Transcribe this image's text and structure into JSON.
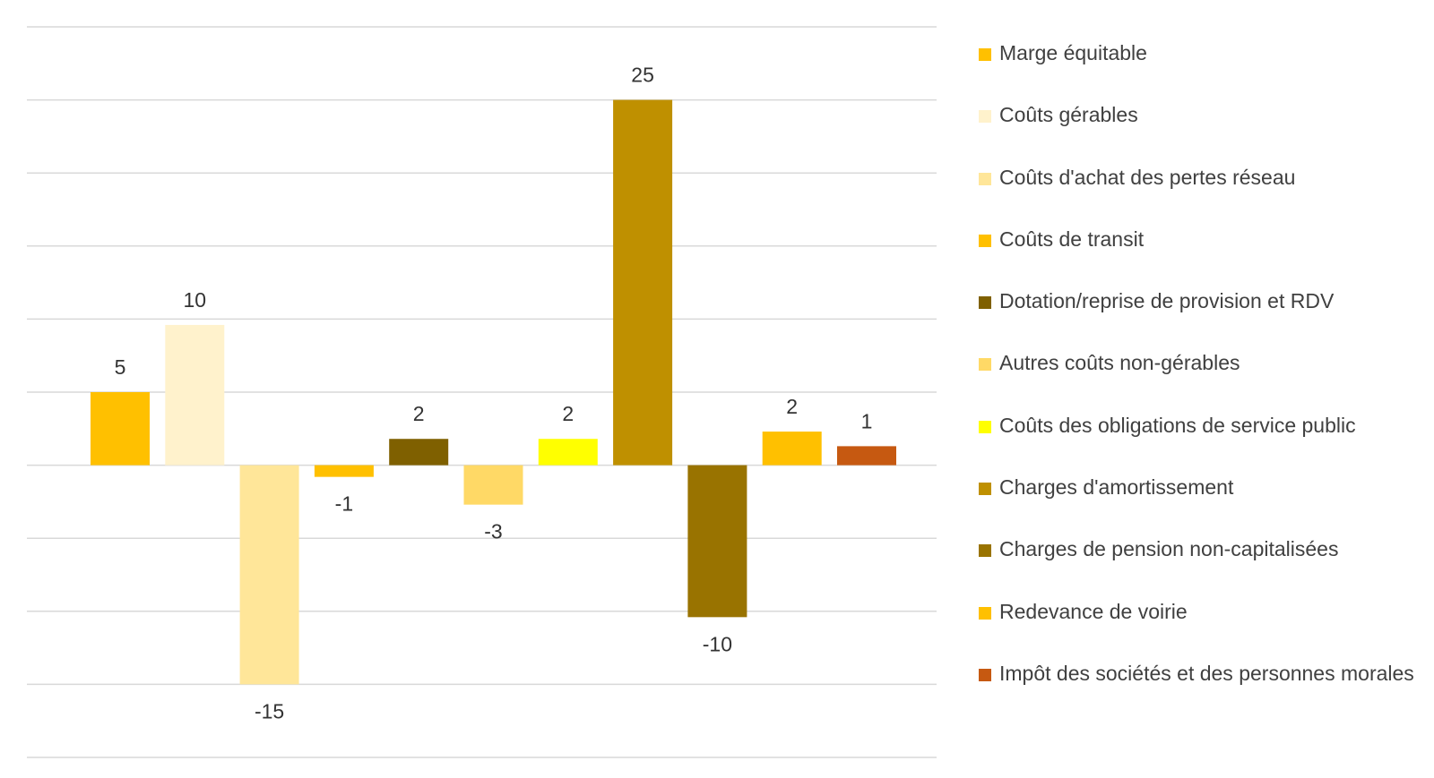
{
  "chart_data": {
    "type": "bar",
    "categories": [
      "Marge équitable",
      "Coûts gérables",
      "Coûts d'achat des pertes réseau",
      "Coûts de transit",
      "Dotation/reprise de provision et RDV",
      "Autres coûts non-gérables",
      "Coûts des obligations de service public",
      "Charges d'amortissement",
      "Charges de pension non-capitalisées",
      "Redevance de voirie",
      "Impôt des sociétés et des personnes morales"
    ],
    "values": [
      5,
      10,
      -15,
      -1,
      2,
      -3,
      2,
      25,
      -10,
      2,
      1
    ],
    "data_labels": [
      "5",
      "10",
      "-15",
      "-1",
      "2",
      "-3",
      "2",
      "25",
      "-10",
      "2",
      "1"
    ],
    "bar_heights_in_units": [
      5,
      9.6,
      -15,
      -0.8,
      1.8,
      -2.7,
      1.8,
      25,
      -10.4,
      2.3,
      1.3
    ],
    "colors": [
      "#FFC000",
      "#FFF2CC",
      "#FFE699",
      "#FFC000",
      "#7F6000",
      "#FFD966",
      "#FFFF00",
      "#BF9000",
      "#997300",
      "#FFC000",
      "#C65911"
    ],
    "ylim": [
      -20,
      30
    ],
    "grid": true,
    "legend_position": "right",
    "title": "",
    "xlabel": "",
    "ylabel": ""
  }
}
